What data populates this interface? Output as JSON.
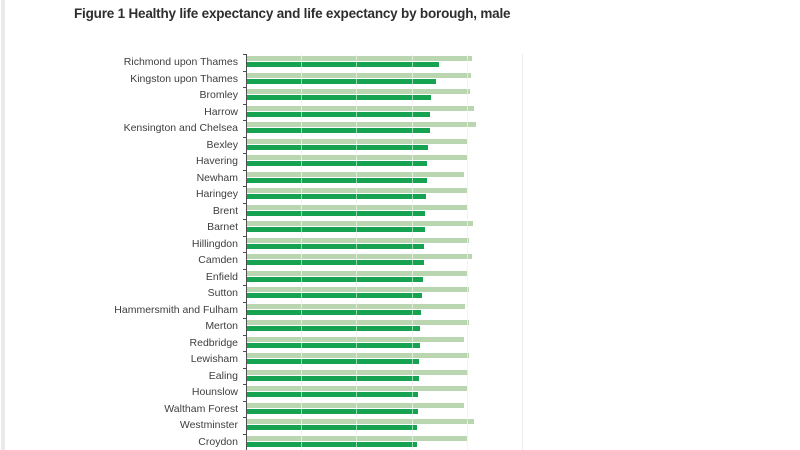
{
  "page": {
    "title": "Figure 1 Healthy life expectancy and life expectancy by borough, male"
  },
  "colors": {
    "healthy_bar_green": "#16a351",
    "life_bar_green": "#bad6b1",
    "axis_gray": "#4f4f4f",
    "gridline_gray": "#e4e4e4",
    "plot_right_edge_gray": "#d9d9d9",
    "title_text": "#2e2e2e",
    "label_text": "#3e3e3e",
    "scrollbar_gray": "#eaeaea"
  },
  "chart_data": {
    "type": "bar",
    "orientation": "horizontal",
    "title": "Figure 1 Healthy life expectancy and life expectancy by borough, male",
    "sorted_by": "healthy life expectancy descending",
    "xlim": [
      0,
      100
    ],
    "gridline_values": [
      20,
      40,
      60,
      80,
      100
    ],
    "x_axis_tick_labels_visible": false,
    "legend_visible": false,
    "bottom_rows_cut_off_by_viewport": true,
    "value_note": "values in years, estimated from unlabeled gridlines assumed at 20-unit intervals",
    "categories": [
      "Richmond upon Thames",
      "Kingston upon Thames",
      "Bromley",
      "Harrow",
      "Kensington and Chelsea",
      "Bexley",
      "Havering",
      "Newham",
      "Haringey",
      "Brent",
      "Barnet",
      "Hillingdon",
      "Camden",
      "Enfield",
      "Sutton",
      "Hammersmith and Fulham",
      "Merton",
      "Redbridge",
      "Lewisham",
      "Ealing",
      "Hounslow",
      "Waltham Forest",
      "Westminster",
      "Croydon"
    ],
    "series": [
      {
        "name": "Life expectancy",
        "row_position": "top",
        "color": "#bad6b1",
        "values": [
          82.0,
          81.7,
          81.2,
          82.6,
          83.5,
          80.2,
          80.2,
          79.0,
          80.0,
          80.2,
          82.2,
          80.8,
          82.0,
          79.9,
          80.8,
          79.5,
          80.7,
          78.9,
          80.7,
          80.5,
          80.2,
          78.9,
          82.6,
          79.9
        ]
      },
      {
        "name": "Healthy life expectancy",
        "row_position": "bottom",
        "color": "#16a351",
        "values": [
          70.0,
          69.0,
          67.2,
          66.8,
          66.6,
          66.1,
          65.7,
          65.5,
          65.2,
          65.0,
          64.8,
          64.6,
          64.4,
          64.1,
          63.9,
          63.5,
          63.1,
          62.9,
          62.8,
          62.6,
          62.4,
          62.3,
          62.1,
          62.0
        ]
      }
    ]
  }
}
